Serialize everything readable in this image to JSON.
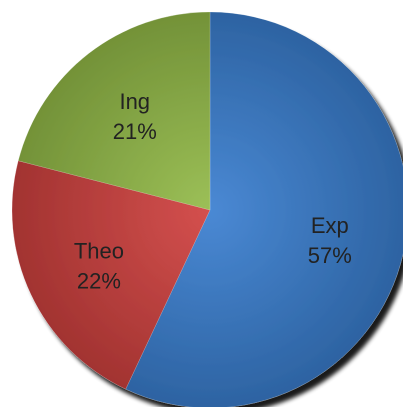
{
  "chart_data": {
    "type": "pie",
    "title": "",
    "start_angle_deg": 0,
    "direction": "clockwise",
    "slices": [
      {
        "name": "Exp",
        "value": 57,
        "value_label": "57%",
        "color": "#3a7fd0"
      },
      {
        "name": "Theo",
        "value": 22,
        "value_label": "22%",
        "color": "#d0413f"
      },
      {
        "name": "Ing",
        "value": 21,
        "value_label": "21%",
        "color": "#93bb48"
      }
    ],
    "legend": "none",
    "shadow": true,
    "shading": "radial-gradient"
  }
}
